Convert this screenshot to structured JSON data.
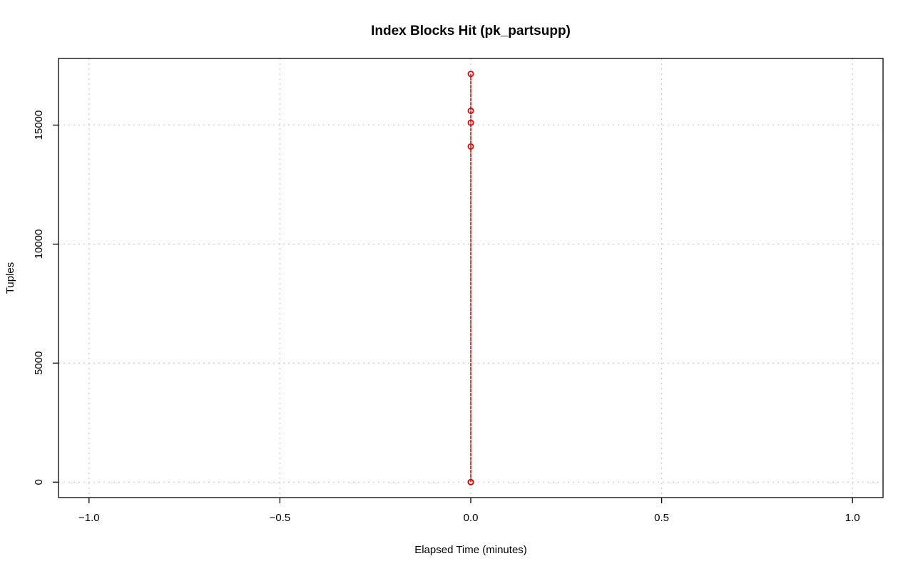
{
  "chart_data": {
    "type": "line",
    "title": "Index Blocks Hit (pk_partsupp)",
    "xlabel": "Elapsed Time (minutes)",
    "ylabel": "Tuples",
    "xlim": [
      -1.08,
      1.08
    ],
    "ylim": [
      -650,
      17800
    ],
    "xticks": [
      -1.0,
      -0.5,
      0.0,
      0.5,
      1.0
    ],
    "xtick_labels": [
      "−1.0",
      "−0.5",
      "0.0",
      "0.5",
      "1.0"
    ],
    "yticks": [
      0,
      5000,
      10000,
      15000
    ],
    "ytick_labels": [
      "0",
      "5000",
      "10000",
      "15000"
    ],
    "grid": true,
    "series": [
      {
        "color": "#e00000",
        "x": [
          0,
          0,
          0,
          0,
          0,
          0
        ],
        "y": [
          0,
          14100,
          15100,
          15600,
          17150,
          0
        ]
      }
    ]
  }
}
